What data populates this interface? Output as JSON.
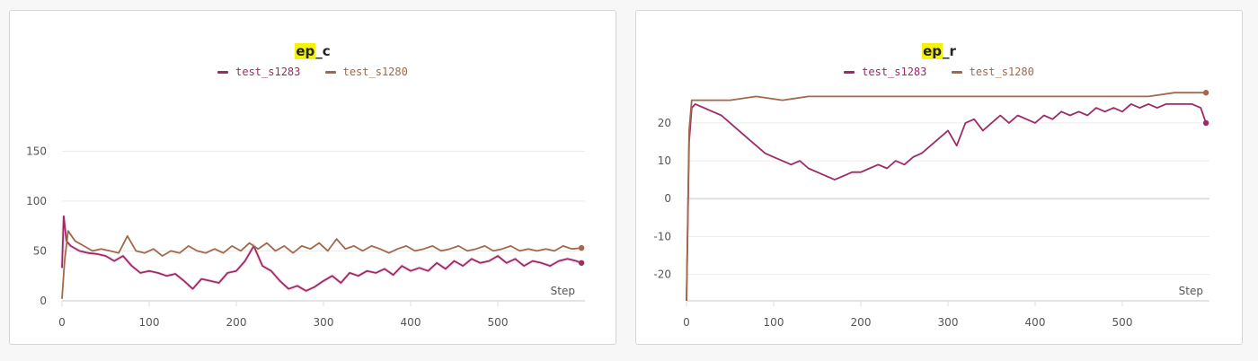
{
  "charts": [
    {
      "id": "left",
      "title_highlight": "ep",
      "title_rest": "_c",
      "step_label": "Step",
      "legend": [
        {
          "name": "test_s1283",
          "color": "#9e2a66"
        },
        {
          "name": "test_s1280",
          "color": "#a3684a"
        }
      ]
    },
    {
      "id": "right",
      "title_highlight": "ep",
      "title_rest": "_r",
      "step_label": "Step",
      "legend": [
        {
          "name": "test_s1283",
          "color": "#9e2a66"
        },
        {
          "name": "test_s1280",
          "color": "#a3684a"
        }
      ]
    }
  ],
  "chart_data": [
    {
      "type": "line",
      "title": "ep_c",
      "xlabel": "Step",
      "ylabel": "",
      "xlim": [
        0,
        600
      ],
      "ylim": [
        0,
        180
      ],
      "xticks": [
        0,
        100,
        200,
        300,
        400,
        500
      ],
      "yticks": [
        0,
        50,
        100,
        150
      ],
      "grid": true,
      "legend_position": "top",
      "series": [
        {
          "name": "test_s1283",
          "color": "#9e2a66",
          "points": [
            [
              0,
              33
            ],
            [
              2,
              85
            ],
            [
              5,
              60
            ],
            [
              10,
              55
            ],
            [
              20,
              50
            ],
            [
              30,
              48
            ],
            [
              40,
              47
            ],
            [
              50,
              45
            ],
            [
              60,
              40
            ],
            [
              70,
              45
            ],
            [
              80,
              35
            ],
            [
              90,
              28
            ],
            [
              100,
              30
            ],
            [
              110,
              28
            ],
            [
              120,
              25
            ],
            [
              130,
              27
            ],
            [
              140,
              20
            ],
            [
              150,
              12
            ],
            [
              160,
              22
            ],
            [
              170,
              20
            ],
            [
              180,
              18
            ],
            [
              190,
              28
            ],
            [
              200,
              30
            ],
            [
              210,
              40
            ],
            [
              220,
              55
            ],
            [
              230,
              35
            ],
            [
              240,
              30
            ],
            [
              250,
              20
            ],
            [
              260,
              12
            ],
            [
              270,
              15
            ],
            [
              280,
              10
            ],
            [
              290,
              14
            ],
            [
              300,
              20
            ],
            [
              310,
              25
            ],
            [
              320,
              18
            ],
            [
              330,
              28
            ],
            [
              340,
              25
            ],
            [
              350,
              30
            ],
            [
              360,
              28
            ],
            [
              370,
              32
            ],
            [
              380,
              26
            ],
            [
              390,
              35
            ],
            [
              400,
              30
            ],
            [
              410,
              33
            ],
            [
              420,
              30
            ],
            [
              430,
              38
            ],
            [
              440,
              32
            ],
            [
              450,
              40
            ],
            [
              460,
              35
            ],
            [
              470,
              42
            ],
            [
              480,
              38
            ],
            [
              490,
              40
            ],
            [
              500,
              45
            ],
            [
              510,
              38
            ],
            [
              520,
              42
            ],
            [
              530,
              35
            ],
            [
              540,
              40
            ],
            [
              550,
              38
            ],
            [
              560,
              35
            ],
            [
              570,
              40
            ],
            [
              580,
              42
            ],
            [
              590,
              40
            ],
            [
              596,
              38
            ]
          ]
        },
        {
          "name": "test_s1280",
          "color": "#a3684a",
          "points": [
            [
              0,
              2
            ],
            [
              3,
              40
            ],
            [
              7,
              70
            ],
            [
              15,
              60
            ],
            [
              25,
              55
            ],
            [
              35,
              50
            ],
            [
              45,
              52
            ],
            [
              55,
              50
            ],
            [
              65,
              48
            ],
            [
              75,
              65
            ],
            [
              85,
              50
            ],
            [
              95,
              48
            ],
            [
              105,
              52
            ],
            [
              115,
              45
            ],
            [
              125,
              50
            ],
            [
              135,
              48
            ],
            [
              145,
              55
            ],
            [
              155,
              50
            ],
            [
              165,
              48
            ],
            [
              175,
              52
            ],
            [
              185,
              48
            ],
            [
              195,
              55
            ],
            [
              205,
              50
            ],
            [
              215,
              58
            ],
            [
              225,
              52
            ],
            [
              235,
              58
            ],
            [
              245,
              50
            ],
            [
              255,
              55
            ],
            [
              265,
              48
            ],
            [
              275,
              55
            ],
            [
              285,
              52
            ],
            [
              295,
              58
            ],
            [
              305,
              50
            ],
            [
              315,
              62
            ],
            [
              325,
              52
            ],
            [
              335,
              55
            ],
            [
              345,
              50
            ],
            [
              355,
              55
            ],
            [
              365,
              52
            ],
            [
              375,
              48
            ],
            [
              385,
              52
            ],
            [
              395,
              55
            ],
            [
              405,
              50
            ],
            [
              415,
              52
            ],
            [
              425,
              55
            ],
            [
              435,
              50
            ],
            [
              445,
              52
            ],
            [
              455,
              55
            ],
            [
              465,
              50
            ],
            [
              475,
              52
            ],
            [
              485,
              55
            ],
            [
              495,
              50
            ],
            [
              505,
              52
            ],
            [
              515,
              55
            ],
            [
              525,
              50
            ],
            [
              535,
              52
            ],
            [
              545,
              50
            ],
            [
              555,
              52
            ],
            [
              565,
              50
            ],
            [
              575,
              55
            ],
            [
              585,
              52
            ],
            [
              596,
              53
            ]
          ]
        }
      ]
    },
    {
      "type": "line",
      "title": "ep_r",
      "xlabel": "Step",
      "ylabel": "",
      "xlim": [
        0,
        600
      ],
      "ylim": [
        -27,
        29
      ],
      "xticks": [
        0,
        100,
        200,
        300,
        400,
        500
      ],
      "yticks": [
        -20,
        -10,
        0,
        10,
        20
      ],
      "grid": true,
      "legend_position": "top",
      "series": [
        {
          "name": "test_s1283",
          "color": "#9e2a66",
          "points": [
            [
              0,
              -27
            ],
            [
              3,
              15
            ],
            [
              6,
              24
            ],
            [
              10,
              25
            ],
            [
              20,
              24
            ],
            [
              30,
              23
            ],
            [
              40,
              22
            ],
            [
              50,
              20
            ],
            [
              60,
              18
            ],
            [
              70,
              16
            ],
            [
              80,
              14
            ],
            [
              90,
              12
            ],
            [
              100,
              11
            ],
            [
              110,
              10
            ],
            [
              120,
              9
            ],
            [
              130,
              10
            ],
            [
              140,
              8
            ],
            [
              150,
              7
            ],
            [
              160,
              6
            ],
            [
              170,
              5
            ],
            [
              180,
              6
            ],
            [
              190,
              7
            ],
            [
              200,
              7
            ],
            [
              210,
              8
            ],
            [
              220,
              9
            ],
            [
              230,
              8
            ],
            [
              240,
              10
            ],
            [
              250,
              9
            ],
            [
              260,
              11
            ],
            [
              270,
              12
            ],
            [
              280,
              14
            ],
            [
              290,
              16
            ],
            [
              300,
              18
            ],
            [
              310,
              14
            ],
            [
              320,
              20
            ],
            [
              330,
              21
            ],
            [
              340,
              18
            ],
            [
              350,
              20
            ],
            [
              360,
              22
            ],
            [
              370,
              20
            ],
            [
              380,
              22
            ],
            [
              390,
              21
            ],
            [
              400,
              20
            ],
            [
              410,
              22
            ],
            [
              420,
              21
            ],
            [
              430,
              23
            ],
            [
              440,
              22
            ],
            [
              450,
              23
            ],
            [
              460,
              22
            ],
            [
              470,
              24
            ],
            [
              480,
              23
            ],
            [
              490,
              24
            ],
            [
              500,
              23
            ],
            [
              510,
              25
            ],
            [
              520,
              24
            ],
            [
              530,
              25
            ],
            [
              540,
              24
            ],
            [
              550,
              25
            ],
            [
              560,
              25
            ],
            [
              570,
              25
            ],
            [
              580,
              25
            ],
            [
              590,
              24
            ],
            [
              596,
              20
            ]
          ]
        },
        {
          "name": "test_s1280",
          "color": "#a3684a",
          "points": [
            [
              0,
              -27
            ],
            [
              3,
              18
            ],
            [
              6,
              26
            ],
            [
              15,
              26
            ],
            [
              30,
              26
            ],
            [
              50,
              26
            ],
            [
              80,
              27
            ],
            [
              110,
              26
            ],
            [
              140,
              27
            ],
            [
              170,
              27
            ],
            [
              200,
              27
            ],
            [
              230,
              27
            ],
            [
              260,
              27
            ],
            [
              290,
              27
            ],
            [
              320,
              27
            ],
            [
              350,
              27
            ],
            [
              380,
              27
            ],
            [
              410,
              27
            ],
            [
              440,
              27
            ],
            [
              470,
              27
            ],
            [
              500,
              27
            ],
            [
              530,
              27
            ],
            [
              560,
              28
            ],
            [
              596,
              28
            ]
          ]
        }
      ]
    }
  ]
}
